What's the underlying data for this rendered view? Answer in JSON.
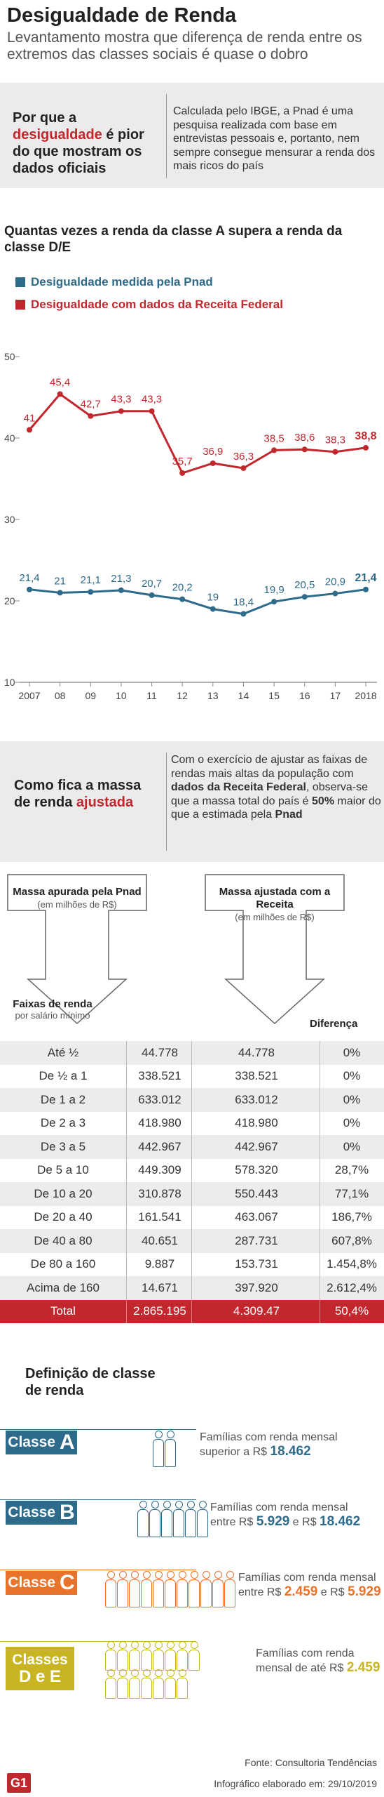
{
  "header": {
    "title": "Desigualdade de Renda",
    "subtitle": "Levantamento mostra que diferença de renda entre os extremos das classes sociais é quase o dobro"
  },
  "why": {
    "h_pre": "Por que a ",
    "h_red": "desigualdade",
    "h_post": " é pior do que mostram os dados oficiais",
    "text": "Calculada pelo IBGE, a Pnad é uma pesquisa realizada com base em entrevistas pessoais e, portanto, nem sempre consegue mensurar a renda dos mais ricos do país"
  },
  "chart_data": {
    "type": "line",
    "title": "Quantas vezes a renda da classe A supera a renda da classe D/E",
    "x": [
      "2007",
      "08",
      "09",
      "10",
      "11",
      "12",
      "13",
      "14",
      "15",
      "16",
      "17",
      "2018"
    ],
    "series": [
      {
        "name": "Desigualdade medida pela Pnad",
        "color": "#2e6b8a",
        "values": [
          21.4,
          21,
          21.1,
          21.3,
          20.7,
          20.2,
          19,
          18.4,
          19.9,
          20.5,
          20.9,
          21.4
        ]
      },
      {
        "name": "Desigualdade com dados da Receita Federal",
        "color": "#c1272d",
        "values": [
          41,
          45.4,
          42.7,
          43.3,
          43.3,
          35.7,
          36.9,
          36.3,
          38.5,
          38.6,
          38.3,
          38.8
        ]
      }
    ],
    "value_labels_1": [
      "21,4",
      "21",
      "21,1",
      "21,3",
      "20,7",
      "20,2",
      "19",
      "18,4",
      "19,9",
      "20,5",
      "20,9",
      "21,4"
    ],
    "value_labels_2": [
      "41",
      "45,4",
      "42,7",
      "43,3",
      "43,3",
      "35,7",
      "36,9",
      "36,3",
      "38,5",
      "38,6",
      "38,3",
      "38,8"
    ],
    "yticks": [
      "10",
      "20",
      "30",
      "40",
      "50"
    ],
    "ylim": [
      10,
      50
    ],
    "grid": false,
    "legend_placement": "top-left"
  },
  "mass": {
    "h_pre": "Como fica a massa de renda ",
    "h_red": "ajustada",
    "t1": "Com o exercício de ajustar as faixas de rendas mais altas da população com ",
    "t_b1": "dados da Receita Federal",
    "t2": ", observa-se que a massa total do país é ",
    "t_b2": "50%",
    "t3": " maior do que a estimada pela ",
    "t_b3": "Pnad"
  },
  "table": {
    "pnad_head": "Massa apurada pela Pnad",
    "receita_head": "Massa ajustada com a Receita",
    "unit": "(em milhões de R$)",
    "faixas_head": "Faixas de renda",
    "faixas_sub": "por salário mínimo",
    "dif_head": "Diferença",
    "rows": [
      [
        "Até ½",
        "44.778",
        "44.778",
        "0%"
      ],
      [
        "De ½  a 1",
        "338.521",
        "338.521",
        "0%"
      ],
      [
        "De 1 a 2",
        "633.012",
        "633.012",
        "0%"
      ],
      [
        "De 2 a 3",
        "418.980",
        "418.980",
        "0%"
      ],
      [
        "De 3 a 5",
        "442.967",
        "442.967",
        "0%"
      ],
      [
        "De 5 a 10",
        "449.309",
        "578.320",
        "28,7%"
      ],
      [
        "De 10 a 20",
        "310.878",
        "550.443",
        "77,1%"
      ],
      [
        "De 20 a 40",
        "161.541",
        "463.067",
        "186,7%"
      ],
      [
        "De 40 a 80",
        "40.651",
        "287.731",
        "607,8%"
      ],
      [
        "De 80 a 160",
        "9.887",
        "153.731",
        "1.454,8%"
      ],
      [
        "Acima de 160",
        "14.671",
        "397.920",
        "2.612,4%"
      ]
    ],
    "total": [
      "Total",
      "2.865.195",
      "4.309.47",
      "50,4%"
    ]
  },
  "classes": {
    "title": "Definição de classe de renda",
    "items": [
      {
        "label": "Classe",
        "letter": "A",
        "color": "#2e6b8a",
        "line1": "Famílias com renda mensal",
        "pre": "superior a R$ ",
        "v1": "18.462",
        "mid": "",
        "v2": ""
      },
      {
        "label": "Classe",
        "letter": "B",
        "color": "#2e6b8a",
        "line1": "Famílias com renda mensal",
        "pre": "entre R$ ",
        "v1": "5.929",
        "mid": " e R$ ",
        "v2": "18.462"
      },
      {
        "label": "Classe",
        "letter": "C",
        "color": "#e8732b",
        "line1": "Famílias com renda mensal",
        "pre": "entre R$ ",
        "v1": "2.459",
        "mid": " e R$ ",
        "v2": "5.929"
      },
      {
        "label": "Classes",
        "letter": "D e E",
        "color": "#c9b521",
        "line1": "Famílias com renda",
        "pre": "mensal de até R$ ",
        "v1": "2.459",
        "mid": "",
        "v2": ""
      }
    ]
  },
  "footer": {
    "source": "Fonte: Consultoria Tendências",
    "date": "Infográfico elaborado em: 29/10/2019",
    "logo": "G1"
  }
}
